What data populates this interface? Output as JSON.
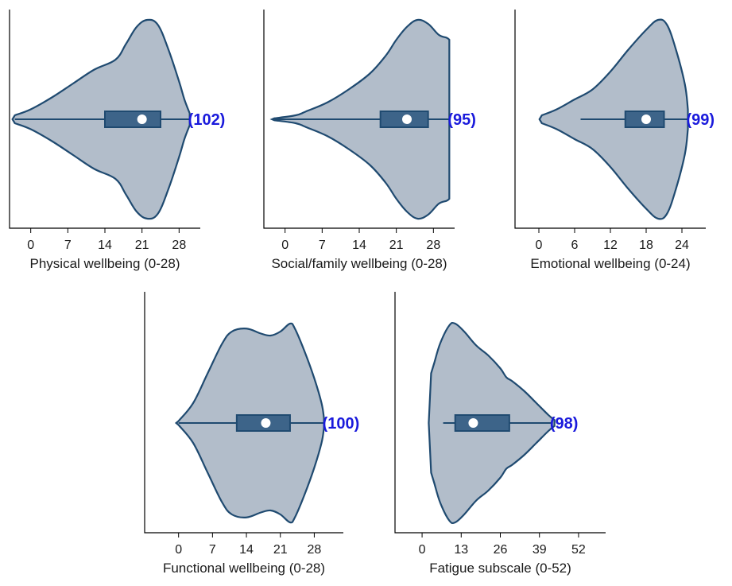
{
  "colors": {
    "violin_fill": "#b2bdca",
    "violin_stroke": "#1f4a70",
    "box_fill": "#3d6489",
    "box_stroke": "#1f4a70",
    "median": "#ffffff",
    "n_label": "#1a1adc"
  },
  "chart_data": [
    {
      "type": "violin",
      "xlabel": "Physical wellbeing (0-28)",
      "n_label": "(102)",
      "ticks": [
        0,
        7,
        14,
        21,
        28
      ],
      "tick_labels": [
        "0",
        "7",
        "14",
        "21",
        "28"
      ],
      "xlim": [
        -4,
        32
      ],
      "stats": {
        "min": -3,
        "q1": 14,
        "median": 21,
        "q3": 24.5,
        "max": 30
      },
      "density": [
        [
          -3,
          0.04
        ],
        [
          0,
          0.1
        ],
        [
          4,
          0.22
        ],
        [
          8,
          0.36
        ],
        [
          12,
          0.5
        ],
        [
          16,
          0.6
        ],
        [
          18,
          0.76
        ],
        [
          20,
          0.93
        ],
        [
          22,
          1.0
        ],
        [
          24,
          0.95
        ],
        [
          26,
          0.7
        ],
        [
          28,
          0.38
        ],
        [
          29,
          0.2
        ],
        [
          30,
          0.06
        ]
      ]
    },
    {
      "type": "violin",
      "xlabel": "Social/family wellbeing (0-28)",
      "n_label": "(95)",
      "ticks": [
        0,
        7,
        14,
        21,
        28
      ],
      "tick_labels": [
        "0",
        "7",
        "14",
        "21",
        "28"
      ],
      "xlim": [
        -4,
        32
      ],
      "stats": {
        "min": -2,
        "q1": 18,
        "median": 23,
        "q3": 27,
        "max": 31
      },
      "density": [
        [
          -2,
          0.01
        ],
        [
          2,
          0.04
        ],
        [
          4,
          0.08
        ],
        [
          8,
          0.17
        ],
        [
          12,
          0.3
        ],
        [
          16,
          0.46
        ],
        [
          19,
          0.64
        ],
        [
          21,
          0.8
        ],
        [
          23,
          0.93
        ],
        [
          25,
          1.0
        ],
        [
          27,
          0.96
        ],
        [
          29,
          0.85
        ],
        [
          30.5,
          0.82
        ],
        [
          31,
          0.8
        ]
      ]
    },
    {
      "type": "violin",
      "xlabel": "Emotional wellbeing (0-24)",
      "n_label": "(99)",
      "ticks": [
        0,
        6,
        12,
        18,
        24
      ],
      "tick_labels": [
        "0",
        "6",
        "12",
        "18",
        "24"
      ],
      "xlim": [
        -4,
        28
      ],
      "stats": {
        "min": 7,
        "q1": 14.5,
        "median": 18,
        "q3": 21,
        "max": 25
      },
      "density": [
        [
          0.5,
          0.04
        ],
        [
          3,
          0.1
        ],
        [
          6,
          0.2
        ],
        [
          9,
          0.3
        ],
        [
          12,
          0.48
        ],
        [
          15,
          0.7
        ],
        [
          18,
          0.9
        ],
        [
          20,
          1.0
        ],
        [
          21.5,
          0.95
        ],
        [
          23,
          0.7
        ],
        [
          24.5,
          0.35
        ],
        [
          25,
          0.1
        ]
      ]
    },
    {
      "type": "violin",
      "xlabel": "Functional wellbeing (0-28)",
      "n_label": "(100)",
      "ticks": [
        0,
        7,
        14,
        21,
        28
      ],
      "tick_labels": [
        "0",
        "7",
        "14",
        "21",
        "28"
      ],
      "xlim": [
        -7,
        34
      ],
      "stats": {
        "min": 0,
        "q1": 12,
        "median": 18,
        "q3": 23,
        "max": 30
      },
      "density": [
        [
          0,
          0.02
        ],
        [
          3,
          0.2
        ],
        [
          6,
          0.5
        ],
        [
          9,
          0.8
        ],
        [
          11,
          0.92
        ],
        [
          14,
          0.95
        ],
        [
          17,
          0.9
        ],
        [
          19,
          0.88
        ],
        [
          21,
          0.92
        ],
        [
          23,
          1.0
        ],
        [
          24,
          0.95
        ],
        [
          26,
          0.72
        ],
        [
          28,
          0.45
        ],
        [
          29.5,
          0.2
        ],
        [
          30,
          0.05
        ]
      ]
    },
    {
      "type": "violin",
      "xlabel": "Fatigue subscale (0-52)",
      "n_label": "(98)",
      "ticks": [
        0,
        13,
        26,
        39,
        52
      ],
      "tick_labels": [
        "0",
        "13",
        "26",
        "39",
        "52"
      ],
      "xlim": [
        -9,
        61
      ],
      "stats": {
        "min": 7,
        "q1": 11,
        "median": 17,
        "q3": 29,
        "max": 43
      },
      "density": [
        [
          3,
          0.5
        ],
        [
          4,
          0.6
        ],
        [
          6,
          0.8
        ],
        [
          9,
          0.98
        ],
        [
          11,
          1.0
        ],
        [
          14,
          0.92
        ],
        [
          18,
          0.78
        ],
        [
          22,
          0.68
        ],
        [
          26,
          0.55
        ],
        [
          28,
          0.46
        ],
        [
          30,
          0.42
        ],
        [
          34,
          0.32
        ],
        [
          38,
          0.2
        ],
        [
          42,
          0.08
        ],
        [
          44,
          0.03
        ]
      ]
    }
  ]
}
